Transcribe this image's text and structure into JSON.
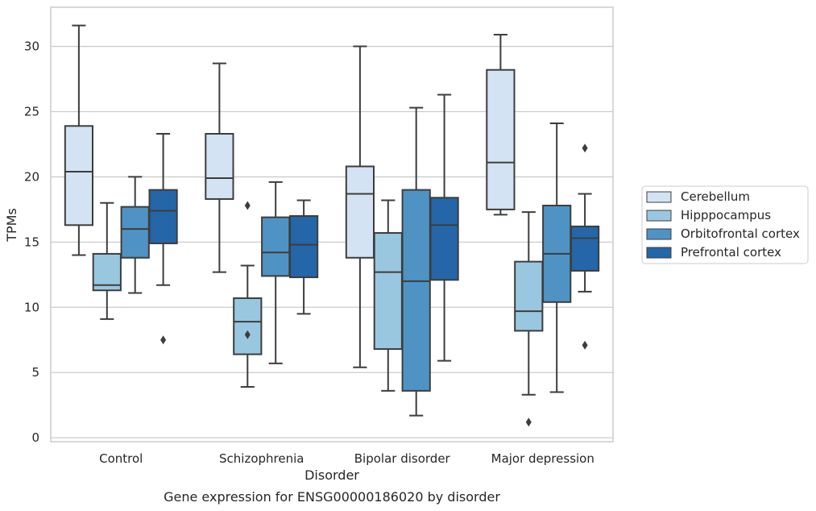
{
  "chart_data": {
    "type": "box",
    "title": "",
    "caption": "Gene expression for ENSG00000186020 by disorder",
    "xlabel": "Disorder",
    "ylabel": "TPMs",
    "ylim": [
      -0.3,
      33
    ],
    "yticks": [
      0,
      5,
      10,
      15,
      20,
      25,
      30
    ],
    "grid": true,
    "legend_position": "right",
    "categories": [
      "Control",
      "Schizophrenia",
      "Bipolar disorder",
      "Major depression"
    ],
    "series": [
      {
        "name": "Cerebellum",
        "color": "#d3e3f3",
        "boxes": [
          {
            "whislo": 14.0,
            "q1": 16.3,
            "med": 20.4,
            "q3": 23.9,
            "whishi": 31.6,
            "fliers": []
          },
          {
            "whislo": 12.7,
            "q1": 18.3,
            "med": 19.9,
            "q3": 23.3,
            "whishi": 28.7,
            "fliers": []
          },
          {
            "whislo": 5.4,
            "q1": 13.8,
            "med": 18.7,
            "q3": 20.8,
            "whishi": 30.0,
            "fliers": []
          },
          {
            "whislo": 17.1,
            "q1": 17.5,
            "med": 21.1,
            "q3": 28.2,
            "whishi": 30.9,
            "fliers": []
          }
        ]
      },
      {
        "name": "Hipppocampus",
        "color": "#9ac7e0",
        "boxes": [
          {
            "whislo": 9.1,
            "q1": 11.3,
            "med": 11.7,
            "q3": 14.1,
            "whishi": 18.0,
            "fliers": []
          },
          {
            "whislo": 3.9,
            "q1": 6.4,
            "med": 8.9,
            "q3": 10.7,
            "whishi": 13.2,
            "fliers": [
              7.9,
              17.8
            ]
          },
          {
            "whislo": 3.6,
            "q1": 6.8,
            "med": 12.7,
            "q3": 15.7,
            "whishi": 18.2,
            "fliers": []
          },
          {
            "whislo": 3.3,
            "q1": 8.2,
            "med": 9.7,
            "q3": 13.5,
            "whishi": 17.3,
            "fliers": [
              1.2
            ]
          }
        ]
      },
      {
        "name": "Orbitofrontal cortex",
        "color": "#4f93c4",
        "boxes": [
          {
            "whislo": 11.1,
            "q1": 13.8,
            "med": 16.0,
            "q3": 17.7,
            "whishi": 20.0,
            "fliers": []
          },
          {
            "whislo": 5.7,
            "q1": 12.4,
            "med": 14.2,
            "q3": 16.9,
            "whishi": 19.6,
            "fliers": []
          },
          {
            "whislo": 1.7,
            "q1": 3.6,
            "med": 12.0,
            "q3": 19.0,
            "whishi": 25.3,
            "fliers": []
          },
          {
            "whislo": 3.5,
            "q1": 10.4,
            "med": 14.1,
            "q3": 17.8,
            "whishi": 24.1,
            "fliers": []
          }
        ]
      },
      {
        "name": "Prefrontal cortex",
        "color": "#2466a8",
        "boxes": [
          {
            "whislo": 11.7,
            "q1": 14.9,
            "med": 17.4,
            "q3": 19.0,
            "whishi": 23.3,
            "fliers": [
              7.5
            ]
          },
          {
            "whislo": 9.5,
            "q1": 12.3,
            "med": 14.8,
            "q3": 17.0,
            "whishi": 18.2,
            "fliers": []
          },
          {
            "whislo": 5.9,
            "q1": 12.1,
            "med": 16.3,
            "q3": 18.4,
            "whishi": 26.3,
            "fliers": []
          },
          {
            "whislo": 11.2,
            "q1": 12.8,
            "med": 15.3,
            "q3": 16.2,
            "whishi": 18.7,
            "fliers": [
              7.1,
              22.2
            ]
          }
        ]
      }
    ]
  }
}
